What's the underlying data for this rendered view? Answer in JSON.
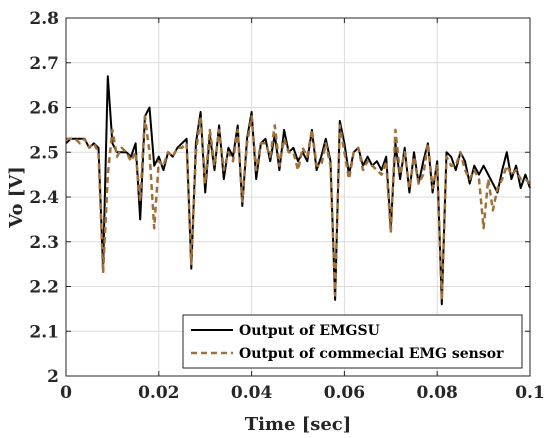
{
  "chart_data": {
    "type": "line",
    "xlabel": "Time [sec]",
    "ylabel": "Vo [V]",
    "xlim": [
      0,
      0.1
    ],
    "ylim": [
      2,
      2.8
    ],
    "x_ticks": [
      0,
      0.02,
      0.04,
      0.06,
      0.08,
      0.1
    ],
    "x_tick_labels": [
      "0",
      "0.02",
      "0.04",
      "0.06",
      "0.08",
      "0.1"
    ],
    "y_ticks": [
      2,
      2.1,
      2.2,
      2.3,
      2.4,
      2.5,
      2.6,
      2.7,
      2.8
    ],
    "y_tick_labels": [
      "2",
      "2.1",
      "2.2",
      "2.3",
      "2.4",
      "2.5",
      "2.6",
      "2.7",
      "2.8"
    ],
    "grid": true,
    "legend_position": "bottom-right",
    "series": [
      {
        "name": "Output of EMGSU",
        "color": "#000000",
        "dash": "solid",
        "x": [
          0,
          0.001,
          0.002,
          0.003,
          0.004,
          0.005,
          0.006,
          0.007,
          0.008,
          0.009,
          0.01,
          0.011,
          0.012,
          0.013,
          0.014,
          0.015,
          0.016,
          0.017,
          0.018,
          0.019,
          0.02,
          0.021,
          0.022,
          0.023,
          0.024,
          0.025,
          0.026,
          0.027,
          0.028,
          0.029,
          0.03,
          0.031,
          0.032,
          0.033,
          0.034,
          0.035,
          0.036,
          0.037,
          0.038,
          0.039,
          0.04,
          0.041,
          0.042,
          0.043,
          0.044,
          0.045,
          0.046,
          0.047,
          0.048,
          0.049,
          0.05,
          0.051,
          0.052,
          0.053,
          0.054,
          0.055,
          0.056,
          0.057,
          0.058,
          0.059,
          0.06,
          0.061,
          0.062,
          0.063,
          0.064,
          0.065,
          0.066,
          0.067,
          0.068,
          0.069,
          0.07,
          0.071,
          0.072,
          0.073,
          0.074,
          0.075,
          0.076,
          0.077,
          0.078,
          0.079,
          0.08,
          0.081,
          0.082,
          0.083,
          0.084,
          0.085,
          0.086,
          0.087,
          0.088,
          0.089,
          0.09,
          0.091,
          0.092,
          0.093,
          0.094,
          0.095,
          0.096,
          0.097,
          0.098,
          0.099,
          0.1
        ],
        "y": [
          2.52,
          2.53,
          2.53,
          2.53,
          2.53,
          2.51,
          2.52,
          2.51,
          2.24,
          2.67,
          2.52,
          2.5,
          2.5,
          2.5,
          2.49,
          2.52,
          2.35,
          2.58,
          2.6,
          2.47,
          2.49,
          2.46,
          2.5,
          2.49,
          2.51,
          2.52,
          2.53,
          2.24,
          2.52,
          2.59,
          2.41,
          2.54,
          2.46,
          2.56,
          2.44,
          2.51,
          2.49,
          2.56,
          2.38,
          2.53,
          2.59,
          2.44,
          2.52,
          2.53,
          2.48,
          2.54,
          2.46,
          2.55,
          2.5,
          2.51,
          2.48,
          2.5,
          2.48,
          2.55,
          2.46,
          2.49,
          2.53,
          2.48,
          2.17,
          2.57,
          2.52,
          2.45,
          2.5,
          2.51,
          2.47,
          2.49,
          2.47,
          2.48,
          2.46,
          2.49,
          2.33,
          2.52,
          2.44,
          2.51,
          2.41,
          2.5,
          2.43,
          2.48,
          2.52,
          2.41,
          2.48,
          2.16,
          2.5,
          2.49,
          2.46,
          2.5,
          2.48,
          2.43,
          2.47,
          2.45,
          2.47,
          2.45,
          2.43,
          2.41,
          2.46,
          2.5,
          2.44,
          2.47,
          2.42,
          2.45,
          2.42
        ]
      },
      {
        "name": "Output of commecial EMG sensor",
        "color": "#a0703a",
        "dash": "dashed",
        "x": [
          0,
          0.001,
          0.002,
          0.003,
          0.004,
          0.005,
          0.006,
          0.007,
          0.008,
          0.009,
          0.01,
          0.011,
          0.012,
          0.013,
          0.014,
          0.015,
          0.016,
          0.017,
          0.018,
          0.019,
          0.02,
          0.021,
          0.022,
          0.023,
          0.024,
          0.025,
          0.026,
          0.027,
          0.028,
          0.029,
          0.03,
          0.031,
          0.032,
          0.033,
          0.034,
          0.035,
          0.036,
          0.037,
          0.038,
          0.039,
          0.04,
          0.041,
          0.042,
          0.043,
          0.044,
          0.045,
          0.046,
          0.047,
          0.048,
          0.049,
          0.05,
          0.051,
          0.052,
          0.053,
          0.054,
          0.055,
          0.056,
          0.057,
          0.058,
          0.059,
          0.06,
          0.061,
          0.062,
          0.063,
          0.064,
          0.065,
          0.066,
          0.067,
          0.068,
          0.069,
          0.07,
          0.071,
          0.072,
          0.073,
          0.074,
          0.075,
          0.076,
          0.077,
          0.078,
          0.079,
          0.08,
          0.081,
          0.082,
          0.083,
          0.084,
          0.085,
          0.086,
          0.087,
          0.088,
          0.089,
          0.09,
          0.091,
          0.092,
          0.093,
          0.094,
          0.095,
          0.096,
          0.097,
          0.098,
          0.099,
          0.1
        ],
        "y": [
          2.53,
          2.53,
          2.53,
          2.52,
          2.53,
          2.51,
          2.52,
          2.5,
          2.23,
          2.45,
          2.55,
          2.49,
          2.51,
          2.5,
          2.48,
          2.5,
          2.39,
          2.58,
          2.5,
          2.33,
          2.48,
          2.47,
          2.5,
          2.49,
          2.51,
          2.51,
          2.52,
          2.25,
          2.5,
          2.58,
          2.43,
          2.55,
          2.47,
          2.55,
          2.46,
          2.5,
          2.48,
          2.55,
          2.39,
          2.52,
          2.58,
          2.46,
          2.52,
          2.52,
          2.49,
          2.56,
          2.47,
          2.53,
          2.5,
          2.5,
          2.46,
          2.51,
          2.49,
          2.55,
          2.47,
          2.47,
          2.52,
          2.47,
          2.18,
          2.56,
          2.5,
          2.44,
          2.5,
          2.51,
          2.46,
          2.48,
          2.47,
          2.46,
          2.45,
          2.48,
          2.32,
          2.55,
          2.45,
          2.5,
          2.42,
          2.49,
          2.43,
          2.45,
          2.52,
          2.42,
          2.47,
          2.17,
          2.49,
          2.47,
          2.47,
          2.5,
          2.46,
          2.44,
          2.46,
          2.44,
          2.33,
          2.44,
          2.37,
          2.42,
          2.44,
          2.47,
          2.45,
          2.46,
          2.44,
          2.44,
          2.43
        ]
      }
    ]
  }
}
